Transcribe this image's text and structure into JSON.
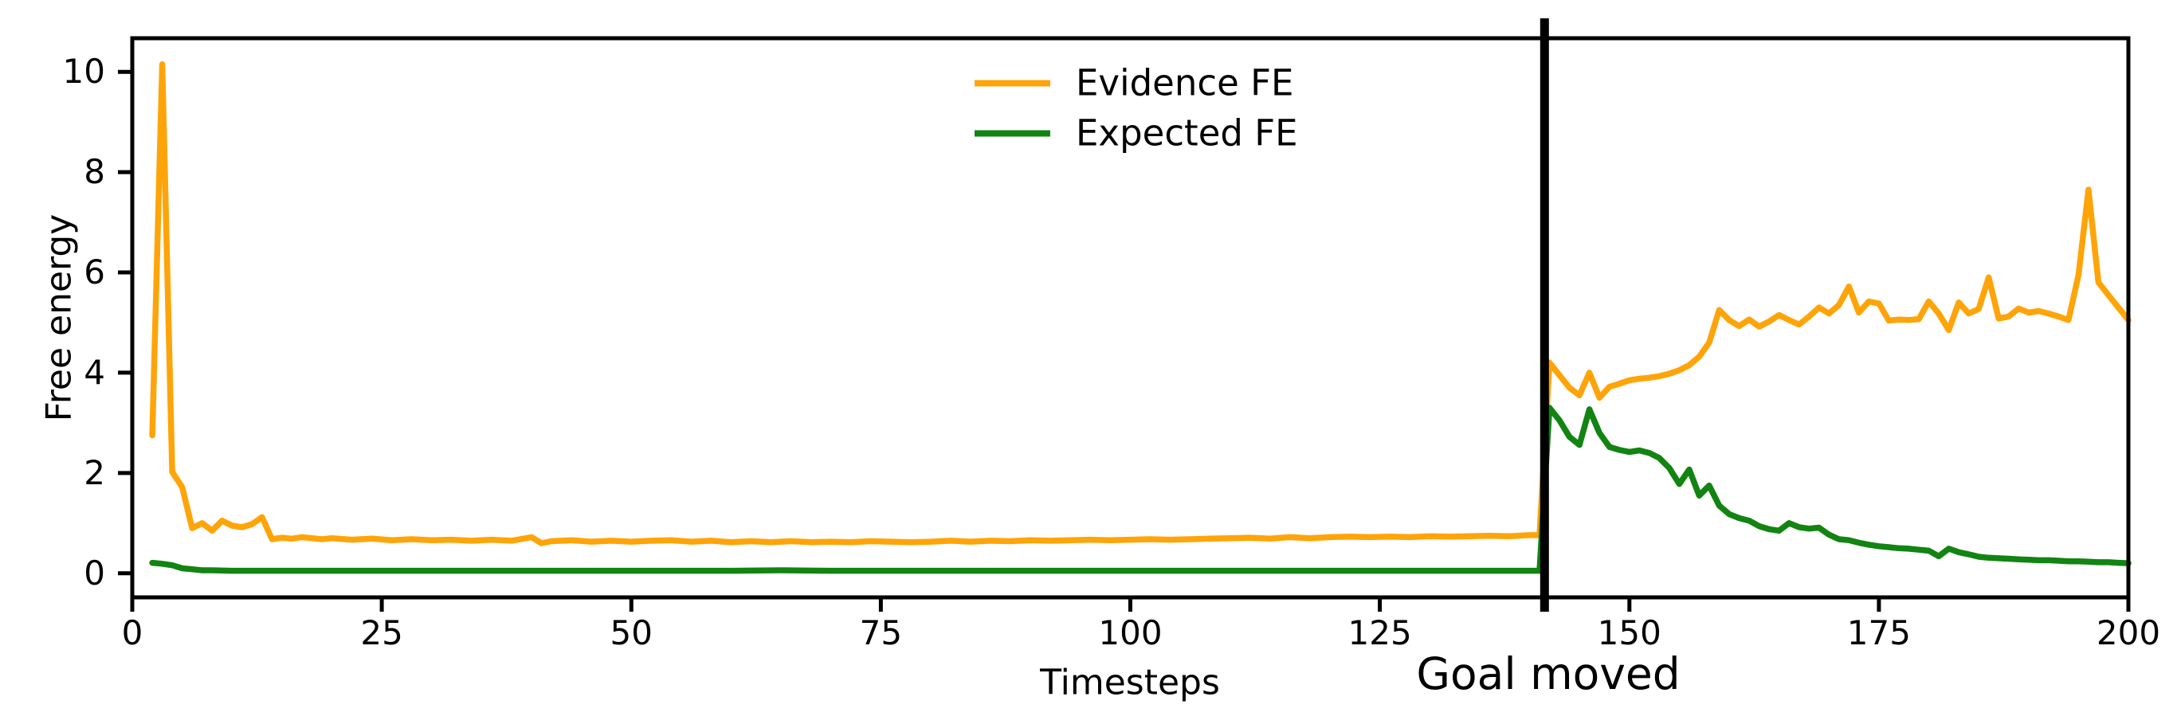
{
  "chart_data": {
    "type": "line",
    "title": "",
    "xlabel": "Timesteps",
    "ylabel": "Free energy",
    "xlim": [
      0,
      200
    ],
    "ylim": [
      -0.48,
      10.67
    ],
    "x_ticks": [
      0,
      25,
      50,
      75,
      100,
      125,
      150,
      175,
      200
    ],
    "y_ticks": [
      0,
      2,
      4,
      6,
      8,
      10
    ],
    "grid": false,
    "background_color": "#ffffff",
    "axis_color": "#000000",
    "legend": {
      "position": "upper center",
      "frame": false,
      "entries": [
        {
          "label": "Evidence FE",
          "color": "#FFA408"
        },
        {
          "label": "Expected FE",
          "color": "#128412"
        }
      ]
    },
    "annotation": {
      "label": "Goal moved",
      "x": 141.5,
      "line_color": "#000000"
    },
    "series": [
      {
        "name": "Evidence FE",
        "color": "#FFA408",
        "points": [
          [
            2,
            2.75
          ],
          [
            3,
            10.15
          ],
          [
            4,
            2.02
          ],
          [
            5,
            1.72
          ],
          [
            6,
            0.9
          ],
          [
            7,
            1.0
          ],
          [
            8,
            0.85
          ],
          [
            9,
            1.05
          ],
          [
            10,
            0.95
          ],
          [
            11,
            0.92
          ],
          [
            12,
            0.98
          ],
          [
            13,
            1.12
          ],
          [
            14,
            0.68
          ],
          [
            15,
            0.71
          ],
          [
            16,
            0.69
          ],
          [
            17,
            0.72
          ],
          [
            18,
            0.7
          ],
          [
            19,
            0.68
          ],
          [
            20,
            0.7
          ],
          [
            22,
            0.67
          ],
          [
            24,
            0.69
          ],
          [
            26,
            0.66
          ],
          [
            28,
            0.68
          ],
          [
            30,
            0.66
          ],
          [
            32,
            0.67
          ],
          [
            34,
            0.65
          ],
          [
            36,
            0.67
          ],
          [
            38,
            0.65
          ],
          [
            40,
            0.72
          ],
          [
            41,
            0.6
          ],
          [
            42,
            0.64
          ],
          [
            44,
            0.66
          ],
          [
            46,
            0.63
          ],
          [
            48,
            0.65
          ],
          [
            50,
            0.63
          ],
          [
            52,
            0.65
          ],
          [
            54,
            0.66
          ],
          [
            56,
            0.63
          ],
          [
            58,
            0.65
          ],
          [
            60,
            0.62
          ],
          [
            62,
            0.64
          ],
          [
            64,
            0.62
          ],
          [
            66,
            0.64
          ],
          [
            68,
            0.62
          ],
          [
            70,
            0.63
          ],
          [
            72,
            0.62
          ],
          [
            74,
            0.64
          ],
          [
            76,
            0.63
          ],
          [
            78,
            0.62
          ],
          [
            80,
            0.63
          ],
          [
            82,
            0.65
          ],
          [
            84,
            0.63
          ],
          [
            86,
            0.65
          ],
          [
            88,
            0.64
          ],
          [
            90,
            0.66
          ],
          [
            92,
            0.65
          ],
          [
            94,
            0.66
          ],
          [
            96,
            0.67
          ],
          [
            98,
            0.66
          ],
          [
            100,
            0.67
          ],
          [
            102,
            0.68
          ],
          [
            104,
            0.67
          ],
          [
            106,
            0.68
          ],
          [
            108,
            0.69
          ],
          [
            110,
            0.7
          ],
          [
            112,
            0.71
          ],
          [
            114,
            0.69
          ],
          [
            116,
            0.72
          ],
          [
            118,
            0.7
          ],
          [
            120,
            0.72
          ],
          [
            122,
            0.73
          ],
          [
            124,
            0.72
          ],
          [
            126,
            0.73
          ],
          [
            128,
            0.72
          ],
          [
            130,
            0.74
          ],
          [
            132,
            0.73
          ],
          [
            134,
            0.74
          ],
          [
            136,
            0.75
          ],
          [
            138,
            0.74
          ],
          [
            140,
            0.76
          ],
          [
            141,
            0.76
          ],
          [
            142,
            4.2
          ],
          [
            143,
            3.95
          ],
          [
            144,
            3.7
          ],
          [
            145,
            3.55
          ],
          [
            146,
            4.0
          ],
          [
            147,
            3.5
          ],
          [
            148,
            3.72
          ],
          [
            149,
            3.78
          ],
          [
            150,
            3.85
          ],
          [
            151,
            3.88
          ],
          [
            152,
            3.9
          ],
          [
            153,
            3.93
          ],
          [
            154,
            3.98
          ],
          [
            155,
            4.05
          ],
          [
            156,
            4.15
          ],
          [
            157,
            4.32
          ],
          [
            158,
            4.6
          ],
          [
            159,
            5.25
          ],
          [
            160,
            5.05
          ],
          [
            161,
            4.93
          ],
          [
            162,
            5.06
          ],
          [
            163,
            4.92
          ],
          [
            164,
            5.02
          ],
          [
            165,
            5.15
          ],
          [
            166,
            5.05
          ],
          [
            167,
            4.96
          ],
          [
            168,
            5.12
          ],
          [
            169,
            5.3
          ],
          [
            170,
            5.18
          ],
          [
            171,
            5.35
          ],
          [
            172,
            5.72
          ],
          [
            173,
            5.2
          ],
          [
            174,
            5.42
          ],
          [
            175,
            5.38
          ],
          [
            176,
            5.04
          ],
          [
            177,
            5.06
          ],
          [
            178,
            5.05
          ],
          [
            179,
            5.07
          ],
          [
            180,
            5.42
          ],
          [
            181,
            5.18
          ],
          [
            182,
            4.85
          ],
          [
            183,
            5.4
          ],
          [
            184,
            5.18
          ],
          [
            185,
            5.27
          ],
          [
            186,
            5.9
          ],
          [
            187,
            5.08
          ],
          [
            188,
            5.12
          ],
          [
            189,
            5.28
          ],
          [
            190,
            5.2
          ],
          [
            191,
            5.23
          ],
          [
            192,
            5.18
          ],
          [
            193,
            5.12
          ],
          [
            194,
            5.05
          ],
          [
            195,
            5.95
          ],
          [
            196,
            7.65
          ],
          [
            197,
            5.8
          ],
          [
            198,
            5.55
          ],
          [
            199,
            5.3
          ],
          [
            200,
            5.05
          ]
        ]
      },
      {
        "name": "Expected FE",
        "color": "#128412",
        "points": [
          [
            2,
            0.21
          ],
          [
            3,
            0.19
          ],
          [
            4,
            0.16
          ],
          [
            5,
            0.1
          ],
          [
            6,
            0.08
          ],
          [
            7,
            0.06
          ],
          [
            8,
            0.06
          ],
          [
            10,
            0.05
          ],
          [
            15,
            0.05
          ],
          [
            20,
            0.05
          ],
          [
            25,
            0.05
          ],
          [
            30,
            0.05
          ],
          [
            35,
            0.05
          ],
          [
            40,
            0.05
          ],
          [
            45,
            0.05
          ],
          [
            50,
            0.05
          ],
          [
            55,
            0.05
          ],
          [
            60,
            0.05
          ],
          [
            65,
            0.06
          ],
          [
            70,
            0.05
          ],
          [
            75,
            0.05
          ],
          [
            80,
            0.05
          ],
          [
            85,
            0.05
          ],
          [
            90,
            0.05
          ],
          [
            95,
            0.05
          ],
          [
            100,
            0.05
          ],
          [
            105,
            0.05
          ],
          [
            110,
            0.05
          ],
          [
            115,
            0.05
          ],
          [
            120,
            0.05
          ],
          [
            125,
            0.05
          ],
          [
            130,
            0.05
          ],
          [
            135,
            0.05
          ],
          [
            140,
            0.05
          ],
          [
            141,
            0.05
          ],
          [
            142,
            3.3
          ],
          [
            143,
            3.05
          ],
          [
            144,
            2.72
          ],
          [
            145,
            2.56
          ],
          [
            146,
            3.27
          ],
          [
            147,
            2.8
          ],
          [
            148,
            2.52
          ],
          [
            149,
            2.46
          ],
          [
            150,
            2.42
          ],
          [
            151,
            2.45
          ],
          [
            152,
            2.4
          ],
          [
            153,
            2.3
          ],
          [
            154,
            2.1
          ],
          [
            155,
            1.78
          ],
          [
            156,
            2.07
          ],
          [
            157,
            1.55
          ],
          [
            158,
            1.75
          ],
          [
            159,
            1.35
          ],
          [
            160,
            1.18
          ],
          [
            161,
            1.1
          ],
          [
            162,
            1.05
          ],
          [
            163,
            0.94
          ],
          [
            164,
            0.88
          ],
          [
            165,
            0.85
          ],
          [
            166,
            1.0
          ],
          [
            167,
            0.92
          ],
          [
            168,
            0.89
          ],
          [
            169,
            0.91
          ],
          [
            170,
            0.77
          ],
          [
            171,
            0.68
          ],
          [
            172,
            0.66
          ],
          [
            173,
            0.61
          ],
          [
            174,
            0.57
          ],
          [
            175,
            0.54
          ],
          [
            176,
            0.52
          ],
          [
            177,
            0.5
          ],
          [
            178,
            0.49
          ],
          [
            179,
            0.47
          ],
          [
            180,
            0.45
          ],
          [
            181,
            0.34
          ],
          [
            182,
            0.49
          ],
          [
            183,
            0.42
          ],
          [
            184,
            0.38
          ],
          [
            185,
            0.33
          ],
          [
            186,
            0.31
          ],
          [
            187,
            0.3
          ],
          [
            188,
            0.29
          ],
          [
            189,
            0.28
          ],
          [
            190,
            0.27
          ],
          [
            191,
            0.26
          ],
          [
            192,
            0.26
          ],
          [
            193,
            0.25
          ],
          [
            194,
            0.24
          ],
          [
            195,
            0.24
          ],
          [
            196,
            0.23
          ],
          [
            197,
            0.22
          ],
          [
            198,
            0.22
          ],
          [
            199,
            0.21
          ],
          [
            200,
            0.2
          ]
        ]
      }
    ]
  }
}
